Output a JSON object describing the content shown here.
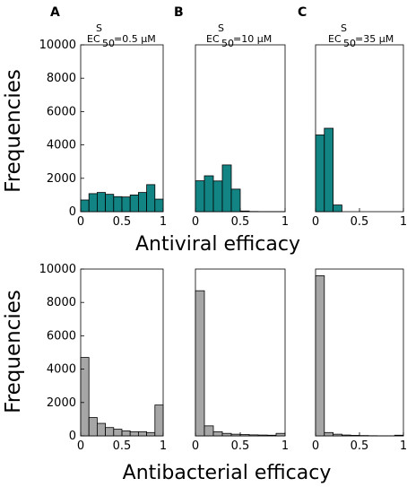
{
  "panel_letters": [
    "A",
    "B",
    "C"
  ],
  "ec_labels": [
    {
      "sup": "S",
      "base": "EC",
      "sub": "50",
      "value": "=0.5 μM"
    },
    {
      "sup": "S",
      "base": "EC",
      "sub": "50",
      "value": "=10 μM"
    },
    {
      "sup": "S",
      "base": "EC",
      "sub": "50",
      "value": "=35 μM"
    }
  ],
  "colors": {
    "antiviral": "#138484",
    "antibacterial": "#a6a6a6"
  },
  "chart_data": [
    {
      "type": "bar",
      "row": "antiviral",
      "panel": "A",
      "ylabel": "Frequencies",
      "xlabel": "Antiviral efficacy",
      "xlim": [
        0,
        1
      ],
      "ylim": [
        0,
        10000
      ],
      "xticks": [
        "0",
        "0.5",
        "1"
      ],
      "yticks": [
        "0",
        "2000",
        "4000",
        "6000",
        "8000",
        "10000"
      ],
      "bin_width": 0.1,
      "bin_starts": [
        0,
        0.1,
        0.2,
        0.3,
        0.4,
        0.5,
        0.6,
        0.7,
        0.8,
        0.9
      ],
      "values": [
        700,
        1080,
        1150,
        1040,
        900,
        880,
        1000,
        1150,
        1620,
        750
      ]
    },
    {
      "type": "bar",
      "row": "antiviral",
      "panel": "B",
      "xlim": [
        0,
        1
      ],
      "ylim": [
        0,
        10000
      ],
      "xticks": [
        "0",
        "0.5",
        "1"
      ],
      "bin_width": 0.1,
      "bin_starts": [
        0,
        0.1,
        0.2,
        0.3,
        0.4,
        0.5,
        0.6,
        0.7,
        0.8,
        0.9
      ],
      "values": [
        1850,
        2150,
        1840,
        2800,
        1350,
        40,
        10,
        5,
        5,
        5
      ]
    },
    {
      "type": "bar",
      "row": "antiviral",
      "panel": "C",
      "xlim": [
        0,
        1
      ],
      "ylim": [
        0,
        10000
      ],
      "xticks": [
        "0",
        "0.5",
        "1"
      ],
      "bin_width": 0.1,
      "bin_starts": [
        0,
        0.1,
        0.2,
        0.3,
        0.4,
        0.5,
        0.6,
        0.7,
        0.8,
        0.9
      ],
      "values": [
        4600,
        5000,
        400,
        0,
        0,
        0,
        0,
        0,
        0,
        0
      ]
    },
    {
      "type": "bar",
      "row": "antibacterial",
      "panel": "A",
      "ylabel": "Frequencies",
      "xlabel": "Antibacterial efficacy",
      "xlim": [
        0,
        1
      ],
      "ylim": [
        0,
        10000
      ],
      "xticks": [
        "0",
        "0.5",
        "1"
      ],
      "yticks": [
        "0",
        "2000",
        "4000",
        "6000",
        "8000",
        "10000"
      ],
      "bin_width": 0.1,
      "bin_starts": [
        0,
        0.1,
        0.2,
        0.3,
        0.4,
        0.5,
        0.6,
        0.7,
        0.8,
        0.9
      ],
      "values": [
        4700,
        1100,
        750,
        500,
        400,
        300,
        250,
        250,
        200,
        1850
      ]
    },
    {
      "type": "bar",
      "row": "antibacterial",
      "panel": "B",
      "xlim": [
        0,
        1
      ],
      "ylim": [
        0,
        10000
      ],
      "xticks": [
        "0",
        "0.5",
        "1"
      ],
      "bin_width": 0.1,
      "bin_starts": [
        0,
        0.1,
        0.2,
        0.3,
        0.4,
        0.5,
        0.6,
        0.7,
        0.8,
        0.9
      ],
      "values": [
        8700,
        600,
        250,
        150,
        100,
        80,
        60,
        50,
        40,
        150
      ]
    },
    {
      "type": "bar",
      "row": "antibacterial",
      "panel": "C",
      "xlim": [
        0,
        1
      ],
      "ylim": [
        0,
        10000
      ],
      "xticks": [
        "0",
        "0.5",
        "1"
      ],
      "bin_width": 0.1,
      "bin_starts": [
        0,
        0.1,
        0.2,
        0.3,
        0.4,
        0.5,
        0.6,
        0.7,
        0.8,
        0.9
      ],
      "values": [
        9600,
        200,
        100,
        50,
        30,
        20,
        10,
        5,
        5,
        40
      ]
    }
  ]
}
